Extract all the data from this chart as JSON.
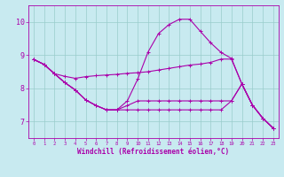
{
  "xlabel": "Windchill (Refroidissement éolien,°C)",
  "xlim": [
    -0.5,
    23.5
  ],
  "ylim": [
    6.5,
    10.5
  ],
  "yticks": [
    7,
    8,
    9,
    10
  ],
  "xticks": [
    0,
    1,
    2,
    3,
    4,
    5,
    6,
    7,
    8,
    9,
    10,
    11,
    12,
    13,
    14,
    15,
    16,
    17,
    18,
    19,
    20,
    21,
    22,
    23
  ],
  "bg_color": "#c8eaf0",
  "line_color": "#aa00aa",
  "grid_color": "#99cccc",
  "curve1_x": [
    0,
    1,
    2,
    3,
    4,
    5,
    6,
    7,
    8,
    9,
    10,
    11,
    12,
    13,
    14,
    15,
    16,
    17,
    18,
    19,
    20,
    21,
    22,
    23
  ],
  "curve1_y": [
    8.87,
    8.72,
    8.44,
    8.17,
    7.95,
    7.65,
    7.48,
    7.35,
    7.35,
    7.62,
    8.28,
    9.1,
    9.65,
    9.92,
    10.08,
    10.08,
    9.72,
    9.37,
    9.08,
    8.9,
    8.13,
    7.5,
    7.1,
    6.8
  ],
  "curve2_x": [
    0,
    1,
    2,
    3,
    4,
    5,
    6,
    7,
    8,
    9,
    10,
    11,
    12,
    13,
    14,
    15,
    16,
    17,
    18,
    19,
    20,
    21,
    22,
    23
  ],
  "curve2_y": [
    8.87,
    8.72,
    8.44,
    8.36,
    8.3,
    8.35,
    8.38,
    8.4,
    8.42,
    8.45,
    8.47,
    8.5,
    8.55,
    8.6,
    8.65,
    8.7,
    8.73,
    8.78,
    8.88,
    8.88,
    8.13,
    7.5,
    7.1,
    6.8
  ],
  "curve3_x": [
    0,
    1,
    2,
    3,
    4,
    5,
    6,
    7,
    8,
    9,
    10,
    11,
    12,
    13,
    14,
    15,
    16,
    17,
    18,
    19,
    20,
    21,
    22,
    23
  ],
  "curve3_y": [
    8.87,
    8.72,
    8.44,
    8.17,
    7.95,
    7.65,
    7.48,
    7.35,
    7.35,
    7.48,
    7.62,
    7.62,
    7.62,
    7.62,
    7.62,
    7.62,
    7.62,
    7.62,
    7.62,
    7.62,
    8.13,
    7.5,
    7.1,
    6.8
  ],
  "curve4_x": [
    0,
    1,
    2,
    3,
    4,
    5,
    6,
    7,
    8,
    9,
    10,
    11,
    12,
    13,
    14,
    15,
    16,
    17,
    18,
    19,
    20,
    21,
    22,
    23
  ],
  "curve4_y": [
    8.87,
    8.72,
    8.44,
    8.17,
    7.95,
    7.65,
    7.48,
    7.35,
    7.35,
    7.35,
    7.35,
    7.35,
    7.35,
    7.35,
    7.35,
    7.35,
    7.35,
    7.35,
    7.35,
    7.62,
    8.13,
    7.5,
    7.1,
    6.8
  ]
}
